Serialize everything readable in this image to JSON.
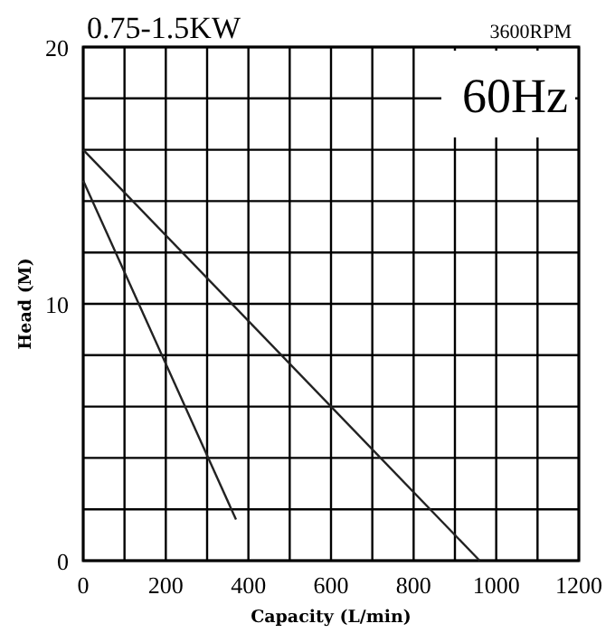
{
  "chart_data": {
    "type": "line",
    "title": "0.75-1.5KW",
    "subtitle": "3600RPM",
    "annotations": [
      "60Hz"
    ],
    "xlabel": "Capacity (L/min)",
    "ylabel": "Head (M)",
    "series": [
      {
        "color": "#222222",
        "x": [
          0,
          960
        ],
        "values": [
          16,
          0
        ]
      },
      {
        "color": "#222222",
        "x": [
          0,
          370
        ],
        "values": [
          14.8,
          1.6
        ]
      }
    ],
    "xlim": [
      0,
      1200
    ],
    "ylim": [
      0,
      20
    ],
    "xticks": [
      0,
      {
        "value": 100,
        "label": null
      },
      200,
      {
        "value": 300,
        "label": null
      },
      400,
      {
        "value": 500,
        "label": null
      },
      600,
      {
        "value": 700,
        "label": null
      },
      800,
      {
        "value": 900,
        "label": null
      },
      1000,
      {
        "value": 1100,
        "label": null
      },
      1200
    ],
    "yticks": [
      0,
      {
        "value": 2,
        "label": null
      },
      {
        "value": 4,
        "label": null
      },
      {
        "value": 6,
        "label": null
      },
      {
        "value": 8,
        "label": null
      },
      10,
      {
        "value": 12,
        "label": null
      },
      {
        "value": 14,
        "label": null
      },
      {
        "value": 16,
        "label": null
      },
      {
        "value": 18,
        "label": null
      },
      20
    ],
    "grid": true,
    "marker": "none",
    "line_style": "solid"
  }
}
